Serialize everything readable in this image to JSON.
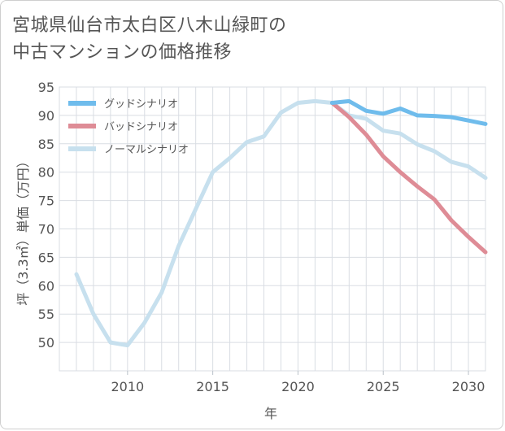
{
  "title_line1": "宮城県仙台市太白区八木山緑町の",
  "title_line2": "中古マンションの価格推移",
  "chart_data": {
    "type": "line",
    "xlabel": "年",
    "ylabel": "坪（3.3㎡）単価（万円）",
    "xlim": [
      2006,
      2031
    ],
    "ylim": [
      45,
      95
    ],
    "xticks": [
      2010,
      2015,
      2020,
      2025,
      2030
    ],
    "yticks": [
      50,
      55,
      60,
      65,
      70,
      75,
      80,
      85,
      90,
      95
    ],
    "grid": true,
    "legend_position": "top-left",
    "series": [
      {
        "name": "グッドシナリオ",
        "color": "#6fbcec",
        "x": [
          2022,
          2023,
          2024,
          2025,
          2026,
          2027,
          2028,
          2029,
          2030,
          2031
        ],
        "y": [
          92.2,
          92.5,
          90.8,
          90.3,
          91.2,
          90.0,
          89.9,
          89.7,
          89.1,
          88.5
        ]
      },
      {
        "name": "バッドシナリオ",
        "color": "#de8c96",
        "x": [
          2022,
          2023,
          2024,
          2025,
          2026,
          2027,
          2028,
          2029,
          2030,
          2031
        ],
        "y": [
          92.2,
          89.7,
          86.6,
          82.8,
          80.0,
          77.5,
          75.2,
          71.5,
          68.6,
          65.9
        ]
      },
      {
        "name": "ノーマルシナリオ",
        "color": "#c7e0ee",
        "x": [
          2007,
          2008,
          2009,
          2010,
          2011,
          2012,
          2013,
          2014,
          2015,
          2016,
          2017,
          2018,
          2019,
          2020,
          2021,
          2022,
          2023,
          2024,
          2025,
          2026,
          2027,
          2028,
          2029,
          2030,
          2031
        ],
        "y": [
          62.0,
          55.0,
          50.0,
          49.5,
          53.5,
          58.8,
          67.0,
          73.5,
          80.0,
          82.5,
          85.3,
          86.3,
          90.5,
          92.2,
          92.5,
          92.2,
          90.0,
          89.4,
          87.3,
          86.8,
          84.9,
          83.7,
          81.8,
          81.0,
          79.0
        ]
      }
    ]
  }
}
